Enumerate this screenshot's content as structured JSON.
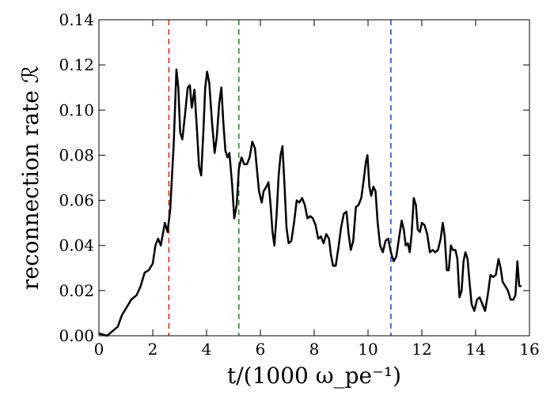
{
  "chart_data": {
    "type": "line",
    "xlabel": "t/(1000 ω_pe⁻¹)",
    "ylabel": "reconnection rate ℛ",
    "xlim": [
      0,
      16
    ],
    "ylim": [
      0,
      0.14
    ],
    "x_ticks": [
      "0",
      "2",
      "4",
      "6",
      "8",
      "10",
      "12",
      "14",
      "16"
    ],
    "y_ticks": [
      "0.00",
      "0.02",
      "0.04",
      "0.06",
      "0.08",
      "0.10",
      "0.12",
      "0.14"
    ],
    "grid": false,
    "vertical_markers": [
      {
        "x": 2.6,
        "color": "#e41a1c"
      },
      {
        "x": 5.2,
        "color": "#2e7d32"
      },
      {
        "x": 10.85,
        "color": "#1f3fd9"
      }
    ],
    "series": [
      {
        "color": "#000000",
        "points": [
          [
            0.0,
            0.001
          ],
          [
            0.3,
            0.0
          ],
          [
            0.5,
            0.002
          ],
          [
            0.7,
            0.004
          ],
          [
            0.85,
            0.009
          ],
          [
            1.0,
            0.012
          ],
          [
            1.2,
            0.016
          ],
          [
            1.4,
            0.018
          ],
          [
            1.55,
            0.022
          ],
          [
            1.7,
            0.028
          ],
          [
            1.85,
            0.029
          ],
          [
            2.0,
            0.032
          ],
          [
            2.1,
            0.04
          ],
          [
            2.2,
            0.043
          ],
          [
            2.3,
            0.04
          ],
          [
            2.45,
            0.05
          ],
          [
            2.55,
            0.046
          ],
          [
            2.65,
            0.056
          ],
          [
            2.78,
            0.085
          ],
          [
            2.88,
            0.118
          ],
          [
            2.95,
            0.11
          ],
          [
            3.02,
            0.09
          ],
          [
            3.1,
            0.087
          ],
          [
            3.2,
            0.098
          ],
          [
            3.3,
            0.11
          ],
          [
            3.38,
            0.111
          ],
          [
            3.45,
            0.101
          ],
          [
            3.55,
            0.109
          ],
          [
            3.65,
            0.09
          ],
          [
            3.72,
            0.075
          ],
          [
            3.8,
            0.071
          ],
          [
            3.88,
            0.09
          ],
          [
            3.95,
            0.11
          ],
          [
            4.02,
            0.117
          ],
          [
            4.1,
            0.112
          ],
          [
            4.2,
            0.095
          ],
          [
            4.3,
            0.081
          ],
          [
            4.38,
            0.088
          ],
          [
            4.47,
            0.103
          ],
          [
            4.55,
            0.11
          ],
          [
            4.62,
            0.095
          ],
          [
            4.7,
            0.082
          ],
          [
            4.78,
            0.079
          ],
          [
            4.85,
            0.081
          ],
          [
            4.95,
            0.067
          ],
          [
            5.03,
            0.052
          ],
          [
            5.12,
            0.058
          ],
          [
            5.2,
            0.074
          ],
          [
            5.3,
            0.079
          ],
          [
            5.4,
            0.076
          ],
          [
            5.5,
            0.076
          ],
          [
            5.6,
            0.079
          ],
          [
            5.7,
            0.086
          ],
          [
            5.8,
            0.083
          ],
          [
            5.87,
            0.074
          ],
          [
            5.95,
            0.064
          ],
          [
            6.05,
            0.059
          ],
          [
            6.12,
            0.064
          ],
          [
            6.22,
            0.066
          ],
          [
            6.3,
            0.068
          ],
          [
            6.38,
            0.058
          ],
          [
            6.45,
            0.046
          ],
          [
            6.52,
            0.04
          ],
          [
            6.6,
            0.053
          ],
          [
            6.68,
            0.071
          ],
          [
            6.75,
            0.08
          ],
          [
            6.82,
            0.084
          ],
          [
            6.9,
            0.066
          ],
          [
            6.97,
            0.048
          ],
          [
            7.05,
            0.041
          ],
          [
            7.15,
            0.042
          ],
          [
            7.25,
            0.05
          ],
          [
            7.35,
            0.06
          ],
          [
            7.45,
            0.059
          ],
          [
            7.55,
            0.061
          ],
          [
            7.65,
            0.058
          ],
          [
            7.75,
            0.052
          ],
          [
            7.85,
            0.053
          ],
          [
            7.95,
            0.052
          ],
          [
            8.05,
            0.049
          ],
          [
            8.15,
            0.043
          ],
          [
            8.25,
            0.044
          ],
          [
            8.35,
            0.041
          ],
          [
            8.45,
            0.045
          ],
          [
            8.55,
            0.043
          ],
          [
            8.62,
            0.036
          ],
          [
            8.7,
            0.031
          ],
          [
            8.8,
            0.031
          ],
          [
            8.9,
            0.039
          ],
          [
            9.0,
            0.048
          ],
          [
            9.1,
            0.054
          ],
          [
            9.2,
            0.055
          ],
          [
            9.28,
            0.045
          ],
          [
            9.36,
            0.038
          ],
          [
            9.45,
            0.042
          ],
          [
            9.55,
            0.057
          ],
          [
            9.65,
            0.058
          ],
          [
            9.75,
            0.061
          ],
          [
            9.83,
            0.068
          ],
          [
            9.92,
            0.077
          ],
          [
            9.98,
            0.08
          ],
          [
            10.05,
            0.066
          ],
          [
            10.12,
            0.062
          ],
          [
            10.2,
            0.066
          ],
          [
            10.28,
            0.064
          ],
          [
            10.36,
            0.05
          ],
          [
            10.45,
            0.04
          ],
          [
            10.55,
            0.037
          ],
          [
            10.65,
            0.042
          ],
          [
            10.75,
            0.043
          ],
          [
            10.85,
            0.037
          ],
          [
            10.95,
            0.033
          ],
          [
            11.05,
            0.035
          ],
          [
            11.15,
            0.043
          ],
          [
            11.25,
            0.051
          ],
          [
            11.33,
            0.047
          ],
          [
            11.4,
            0.04
          ],
          [
            11.48,
            0.041
          ],
          [
            11.55,
            0.037
          ],
          [
            11.62,
            0.045
          ],
          [
            11.7,
            0.061
          ],
          [
            11.78,
            0.058
          ],
          [
            11.85,
            0.047
          ],
          [
            11.93,
            0.046
          ],
          [
            12.0,
            0.05
          ],
          [
            12.1,
            0.049
          ],
          [
            12.2,
            0.045
          ],
          [
            12.3,
            0.037
          ],
          [
            12.4,
            0.038
          ],
          [
            12.5,
            0.037
          ],
          [
            12.6,
            0.038
          ],
          [
            12.7,
            0.043
          ],
          [
            12.78,
            0.05
          ],
          [
            12.85,
            0.044
          ],
          [
            12.93,
            0.029
          ],
          [
            13.0,
            0.029
          ],
          [
            13.08,
            0.04
          ],
          [
            13.15,
            0.038
          ],
          [
            13.25,
            0.038
          ],
          [
            13.32,
            0.034
          ],
          [
            13.4,
            0.017
          ],
          [
            13.48,
            0.02
          ],
          [
            13.55,
            0.033
          ],
          [
            13.62,
            0.037
          ],
          [
            13.7,
            0.034
          ],
          [
            13.77,
            0.024
          ],
          [
            13.85,
            0.014
          ],
          [
            13.95,
            0.011
          ],
          [
            14.05,
            0.016
          ],
          [
            14.15,
            0.017
          ],
          [
            14.25,
            0.014
          ],
          [
            14.35,
            0.011
          ],
          [
            14.45,
            0.018
          ],
          [
            14.55,
            0.027
          ],
          [
            14.65,
            0.026
          ],
          [
            14.75,
            0.027
          ],
          [
            14.85,
            0.034
          ],
          [
            14.93,
            0.03
          ],
          [
            15.0,
            0.024
          ],
          [
            15.1,
            0.022
          ],
          [
            15.2,
            0.02
          ],
          [
            15.3,
            0.016
          ],
          [
            15.4,
            0.016
          ],
          [
            15.48,
            0.018
          ],
          [
            15.55,
            0.033
          ],
          [
            15.62,
            0.022
          ],
          [
            15.7,
            0.022
          ]
        ]
      }
    ]
  }
}
